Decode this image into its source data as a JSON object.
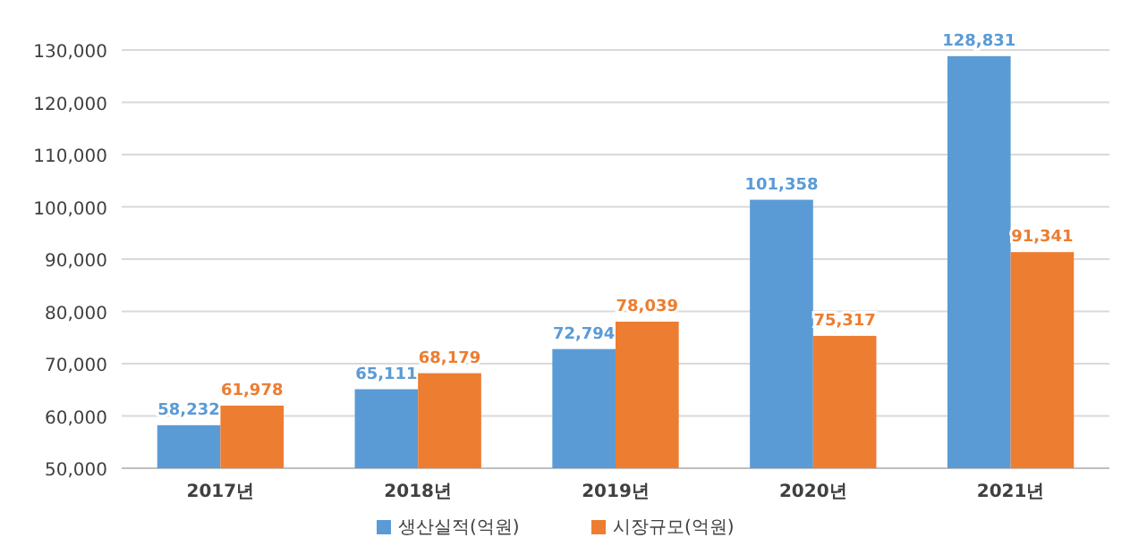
{
  "chart_data": {
    "type": "bar",
    "categories": [
      "2017년",
      "2018년",
      "2019년",
      "2020년",
      "2021년"
    ],
    "series": [
      {
        "name": "생산실적(억원)",
        "color": "#5b9bd5",
        "values": [
          58232,
          65111,
          72794,
          101358,
          128831
        ],
        "value_labels": [
          "58,232",
          "65,111",
          "72,794",
          "101,358",
          "128,831"
        ]
      },
      {
        "name": "시장규모(억원)",
        "color": "#ed7d31",
        "values": [
          61978,
          68179,
          78039,
          75317,
          91341
        ],
        "value_labels": [
          "61,978",
          "68,179",
          "78,039",
          "75,317",
          "91,341"
        ]
      }
    ],
    "ylim": [
      50000,
      130000
    ],
    "yticks": [
      {
        "value": 50000,
        "label": "50,000"
      },
      {
        "value": 60000,
        "label": "60,000"
      },
      {
        "value": 70000,
        "label": "70,000"
      },
      {
        "value": 80000,
        "label": "80,000"
      },
      {
        "value": 90000,
        "label": "90,000"
      },
      {
        "value": 100000,
        "label": "100,000"
      },
      {
        "value": 110000,
        "label": "110,000"
      },
      {
        "value": 120000,
        "label": "120,000"
      },
      {
        "value": 130000,
        "label": "130,000"
      }
    ],
    "grid": "y",
    "legend": "bottom"
  }
}
